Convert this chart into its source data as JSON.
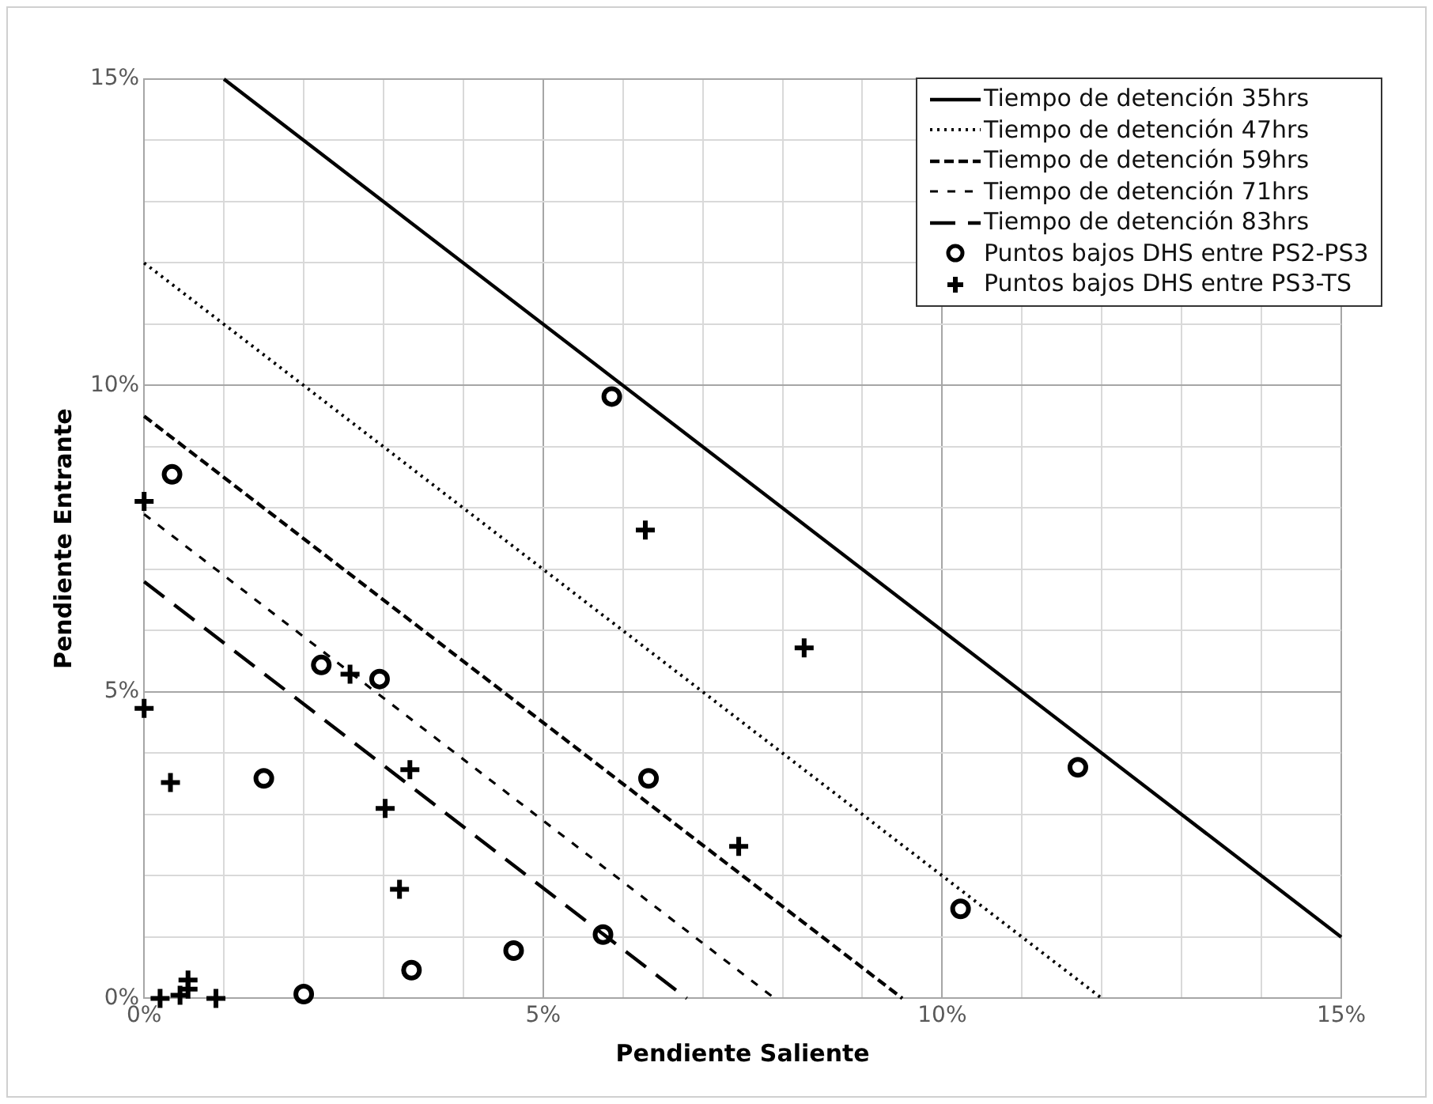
{
  "chart_data": {
    "type": "scatter",
    "xlabel": "Pendiente Saliente",
    "ylabel": "Pendiente Entrante",
    "xlim": [
      0,
      15
    ],
    "ylim": [
      0,
      15
    ],
    "xticks": [
      {
        "value": 0,
        "label": "0%"
      },
      {
        "value": 1,
        "label": null
      },
      {
        "value": 2,
        "label": null
      },
      {
        "value": 3,
        "label": null
      },
      {
        "value": 4,
        "label": null
      },
      {
        "value": 5,
        "label": "5%"
      },
      {
        "value": 6,
        "label": null
      },
      {
        "value": 7,
        "label": null
      },
      {
        "value": 8,
        "label": null
      },
      {
        "value": 9,
        "label": null
      },
      {
        "value": 10,
        "label": "10%"
      },
      {
        "value": 11,
        "label": null
      },
      {
        "value": 12,
        "label": null
      },
      {
        "value": 13,
        "label": null
      },
      {
        "value": 14,
        "label": null
      },
      {
        "value": 15,
        "label": "15%"
      }
    ],
    "yticks": [
      {
        "value": 0,
        "label": "0%"
      },
      {
        "value": 1,
        "label": null
      },
      {
        "value": 2,
        "label": null
      },
      {
        "value": 3,
        "label": null
      },
      {
        "value": 4,
        "label": null
      },
      {
        "value": 5,
        "label": "5%"
      },
      {
        "value": 6,
        "label": null
      },
      {
        "value": 7,
        "label": null
      },
      {
        "value": 8,
        "label": null
      },
      {
        "value": 9,
        "label": null
      },
      {
        "value": 10,
        "label": "10%"
      },
      {
        "value": 11,
        "label": null
      },
      {
        "value": 12,
        "label": null
      },
      {
        "value": 13,
        "label": null
      },
      {
        "value": 14,
        "label": null
      },
      {
        "value": 15,
        "label": "15%"
      }
    ],
    "grid": true,
    "legend": "top right",
    "series": [
      {
        "name": "Tiempo de detención 35hrs",
        "type": "line",
        "line_style": "solid",
        "color": "#000000",
        "x": [
          1,
          15
        ],
        "values": [
          15,
          1
        ]
      },
      {
        "name": "Tiempo de detención 47hrs",
        "type": "line",
        "line_style": "dotted",
        "color": "#000000",
        "x": [
          0,
          12
        ],
        "values": [
          12,
          0
        ]
      },
      {
        "name": "Tiempo de detención 59hrs",
        "type": "line",
        "line_style": "dashed",
        "color": "#000000",
        "x": [
          0,
          9.5
        ],
        "values": [
          9.5,
          0
        ]
      },
      {
        "name": "Tiempo de detención 71hrs",
        "type": "line",
        "line_style": "dashed",
        "color": "#000000",
        "x": [
          0,
          7.9
        ],
        "values": [
          7.9,
          0
        ]
      },
      {
        "name": "Tiempo de detención 83hrs",
        "type": "line",
        "line_style": "dashed",
        "color": "#000000",
        "x": [
          0,
          6.8
        ],
        "values": [
          6.8,
          0
        ]
      },
      {
        "name": "Puntos bajos DHS entre PS2-PS3",
        "type": "scatter",
        "marker": "circle",
        "color": "#000000",
        "x": [
          5.86,
          0.35,
          2.22,
          2.95,
          1.5,
          6.32,
          5.75,
          4.63,
          3.35,
          2.0,
          11.7,
          10.23
        ],
        "values": [
          9.82,
          8.55,
          5.44,
          5.21,
          3.59,
          3.59,
          1.04,
          0.78,
          0.46,
          0.07,
          3.77,
          1.46
        ]
      },
      {
        "name": "Puntos bajos DHS entre PS3-TS",
        "type": "scatter",
        "marker": "cross",
        "color": "#000000",
        "x": [
          0,
          0,
          0.33,
          2.58,
          3.33,
          3.02,
          3.2,
          6.28,
          7.45,
          8.27,
          0.2,
          0.45,
          0.55,
          0.55,
          0.9
        ],
        "values": [
          8.11,
          4.73,
          3.52,
          5.29,
          3.73,
          3.1,
          1.78,
          7.64,
          2.48,
          5.72,
          0,
          0.05,
          0.15,
          0.3,
          0
        ]
      }
    ]
  }
}
